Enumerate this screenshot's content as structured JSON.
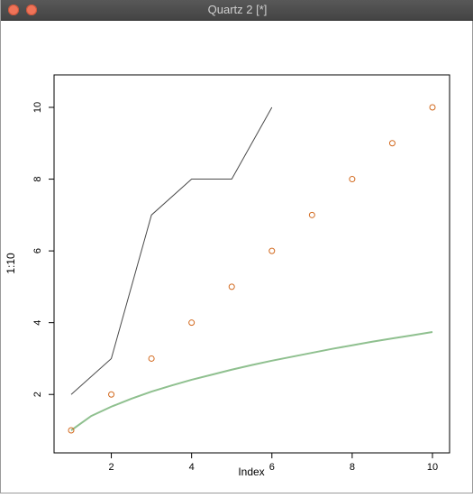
{
  "window": {
    "title": "Quartz 2 [*]"
  },
  "colors": {
    "titlebar": "#4a4a4a",
    "traffic_light": "#ef7358",
    "line_series": "#4a4a4a",
    "point_series": "#d2691e",
    "curve_series": "#8fc08f"
  },
  "chart_data": {
    "type": "scatter",
    "xlabel": "Index",
    "ylabel": "1:10",
    "xlim": [
      1,
      10
    ],
    "ylim": [
      1,
      10
    ],
    "x_ticks": [
      "2",
      "4",
      "6",
      "8",
      "10"
    ],
    "y_ticks": [
      "2",
      "4",
      "6",
      "8",
      "10"
    ],
    "grid": false,
    "series": [
      {
        "type": "scatter",
        "x": [
          1,
          2,
          3,
          4,
          5,
          6,
          7,
          8,
          9,
          10
        ],
        "y": [
          1,
          2,
          3,
          4,
          5,
          6,
          7,
          8,
          9,
          10
        ]
      },
      {
        "type": "line",
        "x": [
          1,
          2,
          3,
          4,
          5,
          6
        ],
        "y": [
          2,
          3,
          7,
          8,
          8,
          10
        ]
      },
      {
        "type": "line",
        "x": [
          1,
          1.5,
          2,
          2.5,
          3,
          3.5,
          4,
          4.5,
          5,
          5.5,
          6,
          6.5,
          7,
          7.5,
          8,
          8.5,
          9,
          9.5,
          10
        ],
        "y": [
          1.0,
          1.4,
          1.66,
          1.88,
          2.08,
          2.25,
          2.41,
          2.55,
          2.69,
          2.82,
          2.94,
          3.05,
          3.16,
          3.27,
          3.37,
          3.47,
          3.56,
          3.65,
          3.74
        ]
      }
    ]
  }
}
